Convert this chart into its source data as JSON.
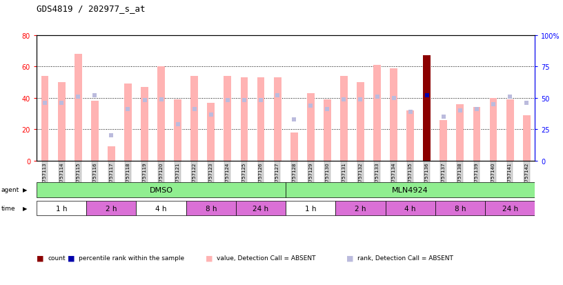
{
  "title": "GDS4819 / 202977_s_at",
  "samples": [
    "GSM757113",
    "GSM757114",
    "GSM757115",
    "GSM757116",
    "GSM757117",
    "GSM757118",
    "GSM757119",
    "GSM757120",
    "GSM757121",
    "GSM757122",
    "GSM757123",
    "GSM757124",
    "GSM757125",
    "GSM757126",
    "GSM757127",
    "GSM757128",
    "GSM757129",
    "GSM757130",
    "GSM757131",
    "GSM757132",
    "GSM757133",
    "GSM757134",
    "GSM757135",
    "GSM757136",
    "GSM757137",
    "GSM757138",
    "GSM757139",
    "GSM757140",
    "GSM757141",
    "GSM757142"
  ],
  "bar_values": [
    54,
    50,
    68,
    38,
    9,
    49,
    47,
    60,
    39,
    54,
    37,
    54,
    53,
    53,
    53,
    18,
    43,
    39,
    54,
    50,
    61,
    59,
    32,
    67,
    26,
    36,
    34,
    40,
    39,
    29
  ],
  "rank_values": [
    46,
    46,
    51,
    52,
    20,
    41,
    48,
    49,
    29,
    41,
    37,
    48,
    48,
    48,
    52,
    33,
    44,
    41,
    49,
    49,
    51,
    50,
    39,
    52,
    35,
    40,
    41,
    45,
    51,
    46
  ],
  "special_bar_idx": 23,
  "special_rank_idx": 23,
  "ylim_left": [
    0,
    80
  ],
  "yticks_left": [
    0,
    20,
    40,
    60,
    80
  ],
  "ylim_right": [
    0,
    100
  ],
  "yticks_right": [
    0,
    25,
    50,
    75,
    100
  ],
  "bar_color": "#FFB3B3",
  "bar_color_special": "#8B0000",
  "rank_color": "#BBBBDD",
  "rank_color_special": "#0000AA",
  "bg_xtick_color": "#CCCCCC",
  "agent_dmso_color": "#90EE90",
  "agent_mln_color": "#90EE90",
  "time_white_color": "#FFFFFF",
  "time_purple_color": "#DA70D6",
  "time_groups": [
    {
      "label": "1 h",
      "start": 0,
      "end": 3,
      "purple": false
    },
    {
      "label": "2 h",
      "start": 3,
      "end": 6,
      "purple": true
    },
    {
      "label": "4 h",
      "start": 6,
      "end": 9,
      "purple": false
    },
    {
      "label": "8 h",
      "start": 9,
      "end": 12,
      "purple": true
    },
    {
      "label": "24 h",
      "start": 12,
      "end": 15,
      "purple": true
    },
    {
      "label": "1 h",
      "start": 15,
      "end": 18,
      "purple": false
    },
    {
      "label": "2 h",
      "start": 18,
      "end": 21,
      "purple": true
    },
    {
      "label": "4 h",
      "start": 21,
      "end": 24,
      "purple": true
    },
    {
      "label": "8 h",
      "start": 24,
      "end": 27,
      "purple": true
    },
    {
      "label": "24 h",
      "start": 27,
      "end": 30,
      "purple": true
    }
  ],
  "legend_items": [
    {
      "label": "count",
      "color": "#8B0000",
      "marker": "s"
    },
    {
      "label": "percentile rank within the sample",
      "color": "#0000AA",
      "marker": "s"
    },
    {
      "label": "value, Detection Call = ABSENT",
      "color": "#FFB3B3",
      "marker": "s"
    },
    {
      "label": "rank, Detection Call = ABSENT",
      "color": "#BBBBDD",
      "marker": "s"
    }
  ]
}
